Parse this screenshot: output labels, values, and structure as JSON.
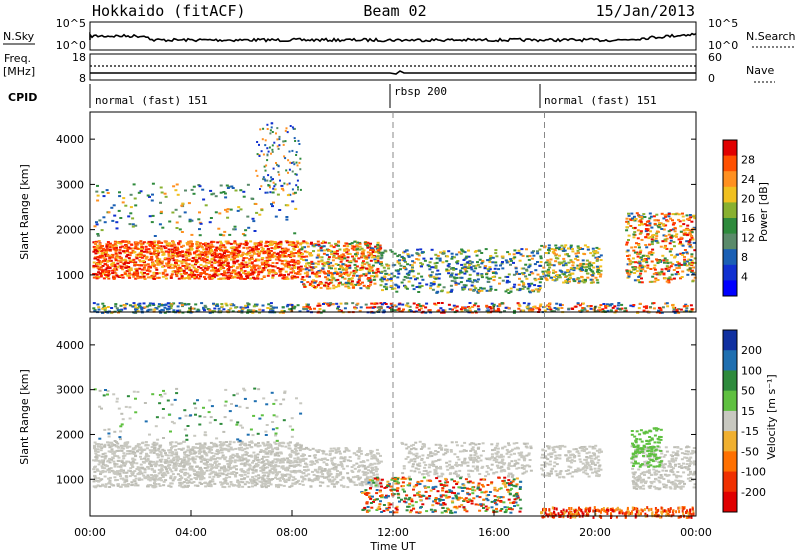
{
  "header": {
    "radar": "Hokkaido (fitACF)",
    "beam": "Beam 02",
    "date": "15/Jan/2013"
  },
  "chart_data": [
    {
      "type": "line",
      "title": "",
      "left_label": "N.Sky",
      "right_label": "N.Search",
      "left_ticks": [
        "10^5",
        "10^0"
      ],
      "right_ticks": [
        "10^5",
        "10^0"
      ]
    },
    {
      "type": "line",
      "left_label_top": "Freq.",
      "left_label_bottom": "[MHz]",
      "right_label": "Nave",
      "left_ticks": [
        "18",
        "8"
      ],
      "right_ticks": [
        "60",
        "0"
      ]
    },
    {
      "type": "table",
      "label": "CPID",
      "segments": [
        {
          "name": "normal (fast) 151",
          "start": "00:00"
        },
        {
          "name": "rbsp 200",
          "start": "12:00"
        },
        {
          "name": "normal (fast) 151",
          "start": "18:00"
        }
      ]
    },
    {
      "type": "heatmap",
      "ylabel": "Slant Range [km]",
      "yticks": [
        "4000",
        "3000",
        "2000",
        "1000"
      ],
      "yrange": [
        180,
        4600
      ],
      "colorbar_label": "Power [dB]",
      "colorbar_ticks": [
        "28",
        "24",
        "20",
        "16",
        "12",
        "8",
        "4"
      ],
      "colorbar_colors": [
        "#e00000",
        "#ff5000",
        "#ff9020",
        "#f0c020",
        "#88b030",
        "#2e8a3c",
        "#5a8a6a",
        "#1a5fb4",
        "#1030d0",
        "#0000ff"
      ]
    },
    {
      "type": "heatmap",
      "ylabel": "Slant Range [km]",
      "yticks": [
        "4000",
        "3000",
        "2000",
        "1000"
      ],
      "yrange": [
        180,
        4600
      ],
      "colorbar_label": "Velocity [m s⁻¹]",
      "colorbar_ticks": [
        "200",
        "100",
        "50",
        "15",
        "-15",
        "-50",
        "-100",
        "-200"
      ],
      "colorbar_colors": [
        "#1030a0",
        "#1f6fb0",
        "#2e8a3c",
        "#5fc040",
        "#c8c8c0",
        "#f0b030",
        "#ff7000",
        "#f03000",
        "#e00000"
      ]
    }
  ],
  "xaxis": {
    "label": "Time UT",
    "ticks": [
      "00:00",
      "04:00",
      "08:00",
      "12:00",
      "16:00",
      "20:00",
      "00:00"
    ]
  },
  "markers": {
    "dashed_times_h": [
      12,
      18
    ]
  }
}
